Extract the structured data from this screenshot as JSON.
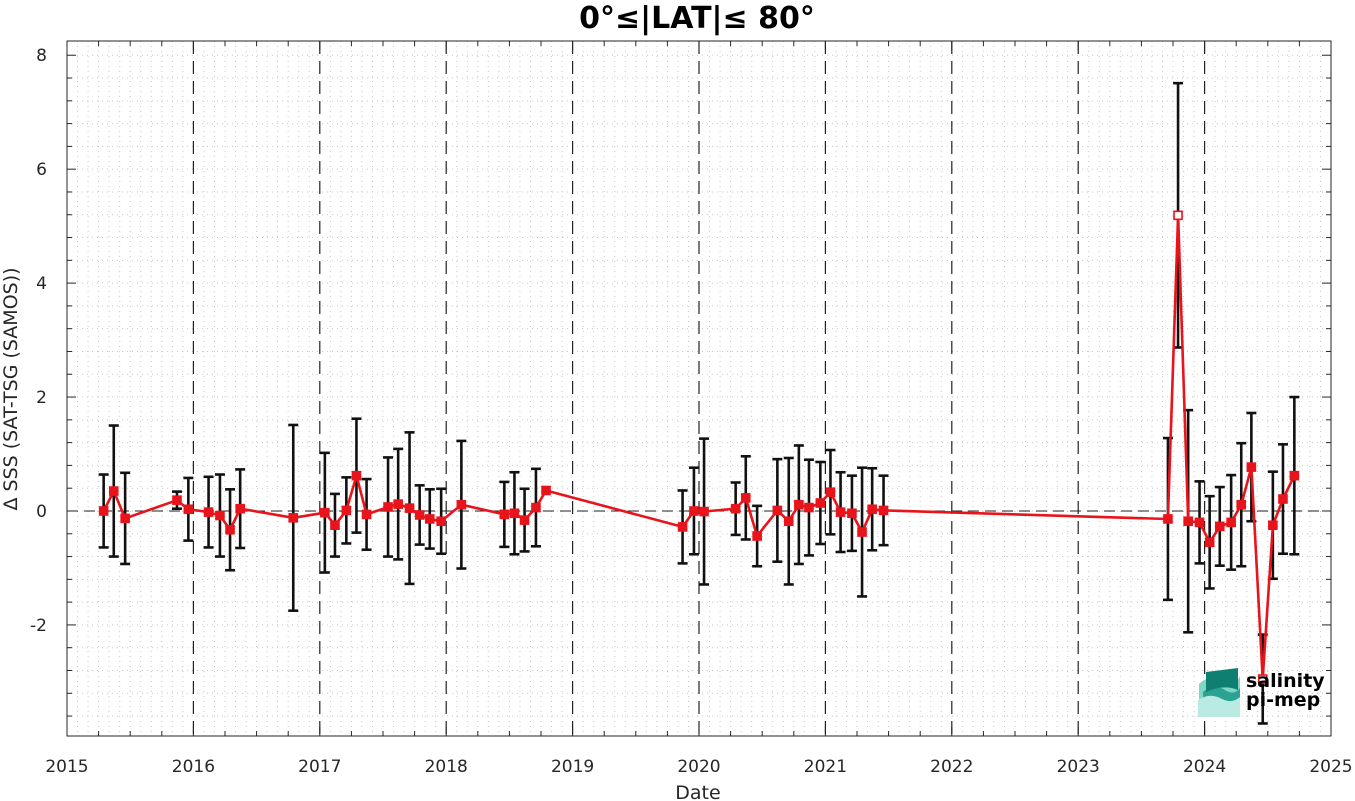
{
  "chart_data": {
    "type": "line",
    "title": "0°≤|LAT|≤ 80°",
    "xlabel": "Date",
    "ylabel": "Δ SSS (SAT-TSG (SAMOS))",
    "xlim": [
      2015,
      2025
    ],
    "ylim": [
      -3.95,
      8.25
    ],
    "x_ticks": [
      2015,
      2016,
      2017,
      2018,
      2019,
      2020,
      2021,
      2022,
      2023,
      2024,
      2025
    ],
    "x_tick_labels": [
      "2015",
      "2016",
      "2017",
      "2018",
      "2019",
      "2020",
      "2021",
      "2022",
      "2023",
      "2024",
      "2025"
    ],
    "y_ticks": [
      -2,
      0,
      2,
      4,
      6,
      8
    ],
    "y_tick_labels": [
      "-2",
      "0",
      "2",
      "4",
      "6",
      "8"
    ],
    "grid": "dotted minor grid, dashed vertical line at each year",
    "series": [
      {
        "color": "#e8141c",
        "error_bar_color": "#111111",
        "x": [
          2015.29,
          2015.37,
          2015.46,
          2015.87,
          2015.96,
          2016.12,
          2016.21,
          2016.29,
          2016.37,
          2016.79,
          2017.04,
          2017.12,
          2017.21,
          2017.29,
          2017.37,
          2017.54,
          2017.62,
          2017.71,
          2017.79,
          2017.87,
          2017.96,
          2018.12,
          2018.46,
          2018.54,
          2018.62,
          2018.71,
          2018.79,
          2019.87,
          2019.96,
          2020.04,
          2020.29,
          2020.37,
          2020.46,
          2020.62,
          2020.71,
          2020.79,
          2020.87,
          2020.96,
          2021.04,
          2021.12,
          2021.21,
          2021.29,
          2021.37,
          2021.46,
          2023.71,
          2023.79,
          2023.87,
          2023.96,
          2024.04,
          2024.12,
          2024.21,
          2024.29,
          2024.37,
          2024.46,
          2024.54,
          2024.62,
          2024.71
        ],
        "y": [
          0.0,
          0.35,
          -0.13,
          0.19,
          0.03,
          -0.02,
          -0.08,
          -0.33,
          0.04,
          -0.12,
          -0.03,
          -0.25,
          0.01,
          0.62,
          -0.06,
          0.07,
          0.12,
          0.05,
          -0.07,
          -0.14,
          -0.18,
          0.11,
          -0.06,
          -0.04,
          -0.16,
          0.06,
          0.36,
          -0.28,
          0.0,
          -0.01,
          0.04,
          0.23,
          -0.44,
          0.01,
          -0.18,
          0.11,
          0.06,
          0.14,
          0.33,
          -0.02,
          -0.04,
          -0.37,
          0.03,
          0.01,
          -0.14,
          5.19,
          -0.18,
          -0.2,
          -0.55,
          -0.27,
          -0.2,
          0.11,
          0.77,
          -2.95,
          -0.25,
          0.21,
          0.62
        ],
        "error": [
          0.64,
          1.15,
          0.8,
          0.15,
          0.55,
          0.62,
          0.72,
          0.71,
          0.69,
          1.63,
          1.05,
          0.55,
          0.58,
          1.0,
          0.62,
          0.87,
          0.97,
          1.33,
          0.52,
          0.52,
          0.57,
          1.12,
          0.57,
          0.72,
          0.55,
          0.68,
          0.0,
          0.64,
          0.76,
          1.28,
          0.46,
          0.73,
          0.53,
          0.9,
          1.11,
          1.04,
          0.84,
          0.72,
          0.74,
          0.7,
          0.66,
          1.13,
          0.72,
          0.61,
          1.42,
          2.32,
          1.95,
          0.72,
          0.81,
          0.69,
          0.83,
          1.08,
          0.95,
          0.78,
          0.94,
          0.96,
          1.38
        ],
        "hollow_markers_at_index": [
          45,
          53
        ]
      }
    ],
    "zero_line": {
      "y": 0,
      "style": "dashed"
    }
  },
  "logo": {
    "line1": "salinity",
    "line2": "pi-mep",
    "color1": "#1ab3a3",
    "color2": "#1f6f63"
  }
}
